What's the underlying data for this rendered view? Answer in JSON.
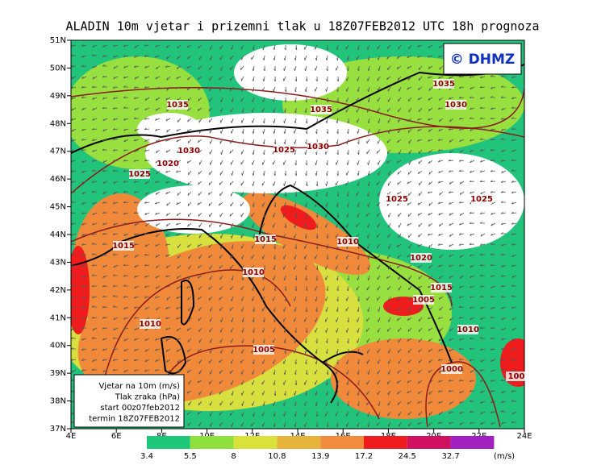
{
  "header": {
    "title": "ALADIN 10m vjetar i prizemni tlak u 18Z07FEB2012 UTC 18h prognoza"
  },
  "logo": "© DHMZ",
  "lat_labels": [
    "51N",
    "50N",
    "49N",
    "48N",
    "47N",
    "46N",
    "45N",
    "44N",
    "43N",
    "42N",
    "41N",
    "40N",
    "39N",
    "38N",
    "37N"
  ],
  "lon_labels": [
    "4E",
    "6E",
    "8E",
    "10E",
    "12E",
    "14E",
    "16E",
    "18E",
    "20E",
    "22E",
    "24E"
  ],
  "isobar_labels": [
    "1035",
    "1035",
    "1035",
    "1030",
    "1030",
    "1020",
    "1025",
    "1025",
    "1030",
    "1025",
    "1025",
    "1015",
    "1015",
    "1010",
    "1020",
    "1010",
    "1015",
    "1005",
    "1010",
    "1010",
    "1005",
    "1000",
    "100"
  ],
  "legend_box": {
    "lines": [
      "Vjetar na 10m (m/s)",
      "Tlak zraka (hPa)",
      "start 00z07feb2012",
      "termin 18Z07FEB2012"
    ]
  },
  "colorbar": {
    "labels": [
      "3.4",
      "5.5",
      "8",
      "10.8",
      "13.9",
      "17.2",
      "24.5",
      "32.7"
    ],
    "unit": "(m/s)"
  }
}
